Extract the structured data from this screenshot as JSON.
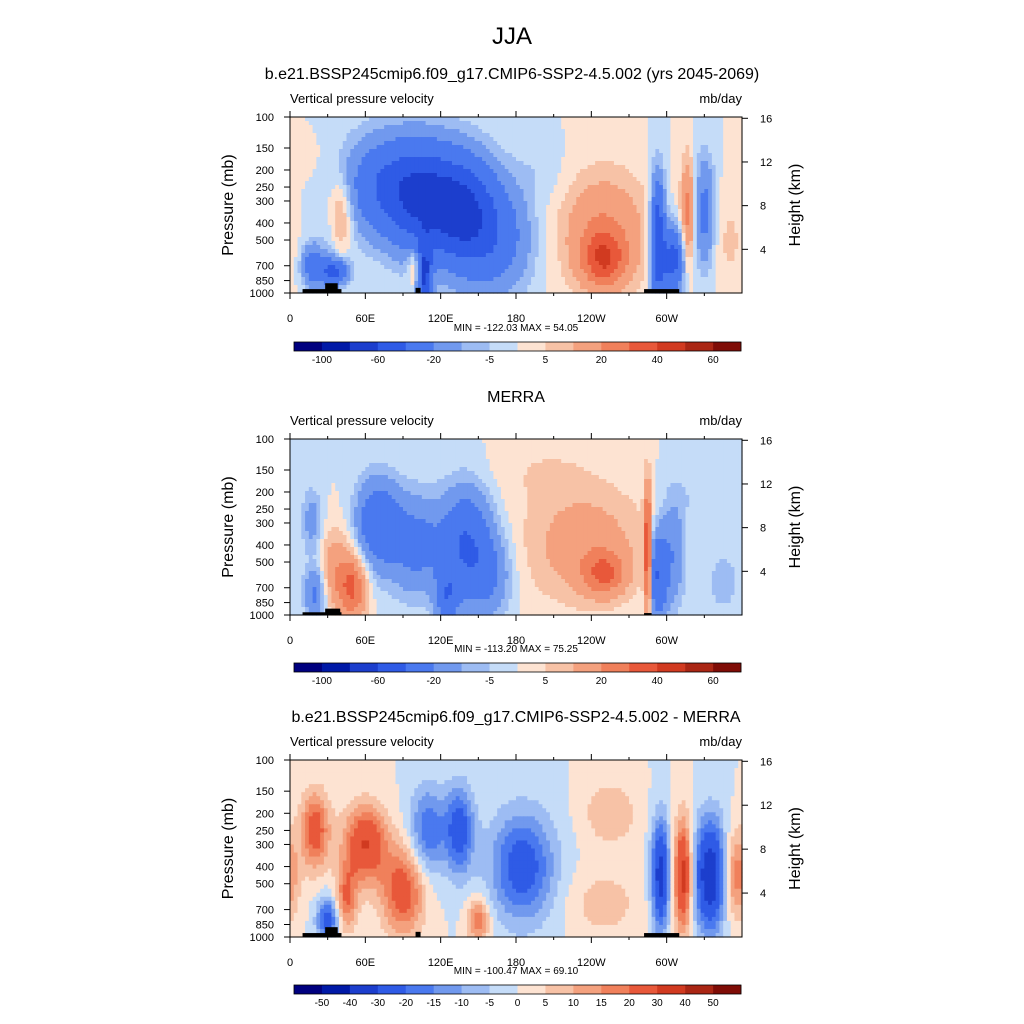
{
  "figure": {
    "title": "JJA"
  },
  "palettes": {
    "abs": [
      "#00007f",
      "#0019a7",
      "#1c3ecd",
      "#2f5be6",
      "#4a79ef",
      "#7199ee",
      "#9dbcf3",
      "#c5dcf8",
      "#fde3d2",
      "#f7c2a6",
      "#f4a17e",
      "#f0805b",
      "#e8583a",
      "#d13a20",
      "#aa2614",
      "#7f0c06"
    ],
    "diff": [
      "#00007f",
      "#0019a7",
      "#1c3ecd",
      "#2f5be6",
      "#4a79ef",
      "#7199ee",
      "#9dbcf3",
      "#c5dcf8",
      "#fde3d2",
      "#f7c2a6",
      "#f4a17e",
      "#f0805b",
      "#e8583a",
      "#d13a20",
      "#aa2614",
      "#7f0c06"
    ]
  },
  "panels": [
    {
      "title": "b.e21.BSSP245cmip6.f09_g17.CMIP6-SSP2-4.5.002 (yrs 2045-2069)",
      "left_label": "Vertical pressure velocity",
      "right_label": "mb/day",
      "stats": "MIN = -122.03  MAX =  54.05"
    },
    {
      "title": "MERRA",
      "left_label": "Vertical pressure velocity",
      "right_label": "mb/day",
      "stats": "MIN = -113.20  MAX =  75.25"
    },
    {
      "title": "b.e21.BSSP245cmip6.f09_g17.CMIP6-SSP2-4.5.002 - MERRA",
      "left_label": "Vertical pressure velocity",
      "right_label": "mb/day",
      "stats": "MIN = -100.47  MAX =  69.10"
    }
  ],
  "chart_data": [
    {
      "type": "heatmap",
      "ylabel": "Pressure (mb)",
      "y2label": "Height (km)",
      "x_ticks": [
        {
          "lon": 0,
          "label": "0"
        },
        {
          "lon": 60,
          "label": "60E"
        },
        {
          "lon": 120,
          "label": "120E"
        },
        {
          "lon": 180,
          "label": "180"
        },
        {
          "lon": 240,
          "label": "120W"
        },
        {
          "lon": 300,
          "label": "60W"
        }
      ],
      "xlim": [
        0,
        360
      ],
      "y_ticks": [
        100,
        150,
        200,
        250,
        300,
        400,
        500,
        700,
        850,
        1000
      ],
      "ylim": [
        1000,
        100
      ],
      "y_scale": "log",
      "y2_ticks": [
        4,
        8,
        12,
        16
      ],
      "colorbar_labels": [
        "-100",
        "-60",
        "-20",
        "-5",
        "5",
        "20",
        "40",
        "60"
      ],
      "min": -122.03,
      "max": 54.05,
      "palette": "abs",
      "features": [
        {
          "lon": 40,
          "p": 350,
          "v": 18,
          "wx": 7,
          "wp": 0.35
        },
        {
          "lon": 32,
          "p": 550,
          "v": -6,
          "wx": 5,
          "wp": 0.4
        },
        {
          "lon": 18,
          "p": 700,
          "v": -30,
          "wx": 6,
          "wp": 0.2
        },
        {
          "lon": 35,
          "p": 760,
          "v": -45,
          "wx": 8,
          "wp": 0.12
        },
        {
          "lon": 10,
          "p": 170,
          "v": 4,
          "wx": 10,
          "wp": 0.2
        },
        {
          "lon": 80,
          "p": 250,
          "v": -40,
          "wx": 25,
          "wp": 0.45
        },
        {
          "lon": 110,
          "p": 300,
          "v": -45,
          "wx": 20,
          "wp": 0.5
        },
        {
          "lon": 140,
          "p": 350,
          "v": -50,
          "wx": 18,
          "wp": 0.5
        },
        {
          "lon": 100,
          "p": 700,
          "v": 20,
          "wx": 4,
          "wp": 0.2
        },
        {
          "lon": 107,
          "p": 800,
          "v": -60,
          "wx": 4,
          "wp": 0.3
        },
        {
          "lon": 165,
          "p": 500,
          "v": -25,
          "wx": 20,
          "wp": 0.5
        },
        {
          "lon": 250,
          "p": 450,
          "v": 20,
          "wx": 25,
          "wp": 0.55
        },
        {
          "lon": 250,
          "p": 650,
          "v": 28,
          "wx": 12,
          "wp": 0.25
        },
        {
          "lon": 293,
          "p": 500,
          "v": -60,
          "wx": 4,
          "wp": 0.55
        },
        {
          "lon": 305,
          "p": 650,
          "v": -50,
          "wx": 6,
          "wp": 0.3
        },
        {
          "lon": 317,
          "p": 350,
          "v": 25,
          "wx": 4,
          "wp": 0.5
        },
        {
          "lon": 330,
          "p": 350,
          "v": -25,
          "wx": 6,
          "wp": 0.5
        },
        {
          "lon": 350,
          "p": 500,
          "v": 6,
          "wx": 10,
          "wp": 0.5
        },
        {
          "lon": 200,
          "p": 200,
          "v": -4,
          "wx": 15,
          "wp": 0.3
        }
      ],
      "topography": [
        {
          "lon0": 10,
          "lon1": 41,
          "p": 950
        },
        {
          "lon0": 28,
          "lon1": 38,
          "p": 880
        },
        {
          "lon0": 100,
          "lon1": 104,
          "p": 935
        },
        {
          "lon0": 282,
          "lon1": 310,
          "p": 950
        }
      ]
    },
    {
      "type": "heatmap",
      "ylabel": "Pressure (mb)",
      "y2label": "Height (km)",
      "x_ticks": [
        {
          "lon": 0,
          "label": "0"
        },
        {
          "lon": 60,
          "label": "60E"
        },
        {
          "lon": 120,
          "label": "120E"
        },
        {
          "lon": 180,
          "label": "180"
        },
        {
          "lon": 240,
          "label": "120W"
        },
        {
          "lon": 300,
          "label": "60W"
        }
      ],
      "xlim": [
        0,
        360
      ],
      "y_ticks": [
        100,
        150,
        200,
        250,
        300,
        400,
        500,
        700,
        850,
        1000
      ],
      "ylim": [
        1000,
        100
      ],
      "y_scale": "log",
      "y2_ticks": [
        4,
        8,
        12,
        16
      ],
      "colorbar_labels": [
        "-100",
        "-60",
        "-20",
        "-5",
        "5",
        "20",
        "40",
        "60"
      ],
      "min": -113.2,
      "max": 75.25,
      "palette": "abs",
      "features": [
        {
          "lon": 50,
          "p": 700,
          "v": 30,
          "wx": 8,
          "wp": 0.3
        },
        {
          "lon": 35,
          "p": 550,
          "v": 15,
          "wx": 10,
          "wp": 0.4
        },
        {
          "lon": 20,
          "p": 750,
          "v": -25,
          "wx": 6,
          "wp": 0.25
        },
        {
          "lon": 18,
          "p": 300,
          "v": -15,
          "wx": 6,
          "wp": 0.3
        },
        {
          "lon": 70,
          "p": 300,
          "v": -35,
          "wx": 12,
          "wp": 0.4
        },
        {
          "lon": 100,
          "p": 400,
          "v": -25,
          "wx": 15,
          "wp": 0.45
        },
        {
          "lon": 140,
          "p": 400,
          "v": -40,
          "wx": 14,
          "wp": 0.5
        },
        {
          "lon": 125,
          "p": 800,
          "v": -30,
          "wx": 6,
          "wp": 0.25
        },
        {
          "lon": 160,
          "p": 600,
          "v": -18,
          "wx": 12,
          "wp": 0.4
        },
        {
          "lon": 235,
          "p": 400,
          "v": 15,
          "wx": 35,
          "wp": 0.55
        },
        {
          "lon": 250,
          "p": 580,
          "v": 25,
          "wx": 12,
          "wp": 0.2
        },
        {
          "lon": 285,
          "p": 450,
          "v": 45,
          "wx": 2,
          "wp": 0.6
        },
        {
          "lon": 293,
          "p": 600,
          "v": -40,
          "wx": 5,
          "wp": 0.4
        },
        {
          "lon": 305,
          "p": 450,
          "v": -20,
          "wx": 7,
          "wp": 0.5
        },
        {
          "lon": 330,
          "p": 200,
          "v": -5,
          "wx": 20,
          "wp": 0.3
        },
        {
          "lon": 200,
          "p": 150,
          "v": 4,
          "wx": 30,
          "wp": 0.3
        },
        {
          "lon": 345,
          "p": 650,
          "v": -8,
          "wx": 10,
          "wp": 0.3
        }
      ],
      "topography": [
        {
          "lon0": 10,
          "lon1": 41,
          "p": 965
        },
        {
          "lon0": 28,
          "lon1": 40,
          "p": 920
        },
        {
          "lon0": 282,
          "lon1": 288,
          "p": 975
        }
      ]
    },
    {
      "type": "heatmap",
      "ylabel": "Pressure (mb)",
      "y2label": "Height (km)",
      "x_ticks": [
        {
          "lon": 0,
          "label": "0"
        },
        {
          "lon": 60,
          "label": "60E"
        },
        {
          "lon": 120,
          "label": "120E"
        },
        {
          "lon": 180,
          "label": "180"
        },
        {
          "lon": 240,
          "label": "120W"
        },
        {
          "lon": 300,
          "label": "60W"
        }
      ],
      "xlim": [
        0,
        360
      ],
      "y_ticks": [
        100,
        150,
        200,
        250,
        300,
        400,
        500,
        700,
        850,
        1000
      ],
      "ylim": [
        1000,
        100
      ],
      "y_scale": "log",
      "y2_ticks": [
        4,
        8,
        12,
        16
      ],
      "colorbar_labels": [
        "-50",
        "-40",
        "-30",
        "-20",
        "-15",
        "-10",
        "-5",
        "0",
        "5",
        "10",
        "15",
        "20",
        "30",
        "40",
        "50"
      ],
      "min": -100.47,
      "max": 69.1,
      "palette": "diff",
      "features": [
        {
          "lon": 20,
          "p": 250,
          "v": 25,
          "wx": 8,
          "wp": 0.35
        },
        {
          "lon": 60,
          "p": 300,
          "v": 30,
          "wx": 12,
          "wp": 0.35
        },
        {
          "lon": 90,
          "p": 550,
          "v": 25,
          "wx": 12,
          "wp": 0.4
        },
        {
          "lon": 110,
          "p": 250,
          "v": -20,
          "wx": 10,
          "wp": 0.4
        },
        {
          "lon": 135,
          "p": 250,
          "v": -25,
          "wx": 8,
          "wp": 0.4
        },
        {
          "lon": 185,
          "p": 400,
          "v": -25,
          "wx": 18,
          "wp": 0.5
        },
        {
          "lon": 30,
          "p": 800,
          "v": -25,
          "wx": 6,
          "wp": 0.2
        },
        {
          "lon": 45,
          "p": 600,
          "v": 20,
          "wx": 6,
          "wp": 0.3
        },
        {
          "lon": 150,
          "p": 800,
          "v": 20,
          "wx": 6,
          "wp": 0.2
        },
        {
          "lon": 255,
          "p": 200,
          "v": 10,
          "wx": 15,
          "wp": 0.3
        },
        {
          "lon": 295,
          "p": 450,
          "v": -35,
          "wx": 5,
          "wp": 0.5
        },
        {
          "lon": 313,
          "p": 450,
          "v": 35,
          "wx": 5,
          "wp": 0.5
        },
        {
          "lon": 335,
          "p": 450,
          "v": -40,
          "wx": 9,
          "wp": 0.5
        },
        {
          "lon": 355,
          "p": 450,
          "v": 20,
          "wx": 8,
          "wp": 0.4
        },
        {
          "lon": 250,
          "p": 650,
          "v": 8,
          "wx": 20,
          "wp": 0.3
        }
      ],
      "topography": [
        {
          "lon0": 10,
          "lon1": 41,
          "p": 950
        },
        {
          "lon0": 28,
          "lon1": 38,
          "p": 880
        },
        {
          "lon0": 100,
          "lon1": 104,
          "p": 935
        },
        {
          "lon0": 282,
          "lon1": 310,
          "p": 950
        }
      ]
    }
  ]
}
